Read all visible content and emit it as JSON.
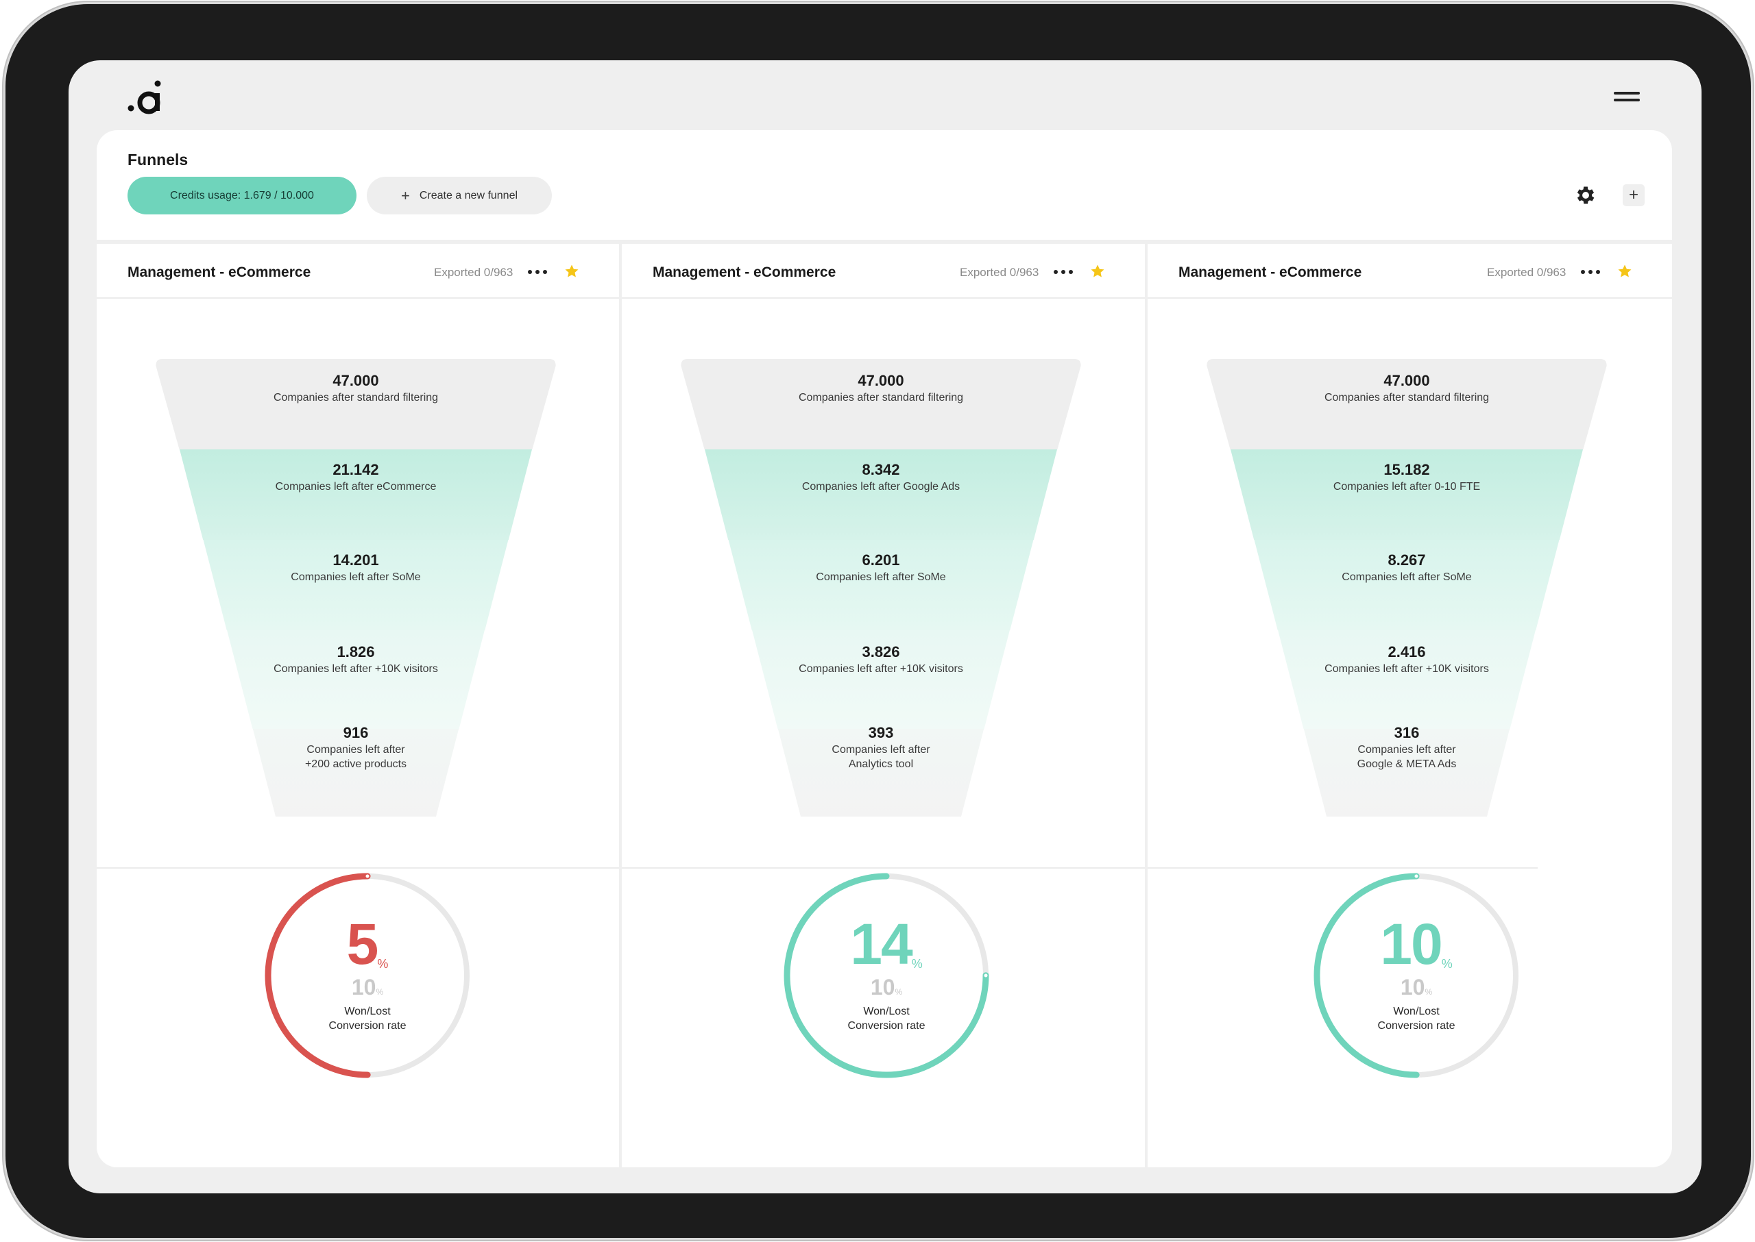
{
  "app": {
    "logo_text": ".ai",
    "page_title": "Funnels",
    "credits_label": "Credits usage: 1.679 / 10.000",
    "new_funnel_label": "Create a new funnel"
  },
  "colors": {
    "accent": "#6fd4bb",
    "danger": "#d9534f",
    "star": "#f5c518"
  },
  "panels": [
    {
      "title": "Management - eCommerce",
      "exported": "Exported 0/963",
      "stages": [
        {
          "value": "47.000",
          "label": "Companies after standard filtering"
        },
        {
          "value": "21.142",
          "label": "Companies left after eCommerce"
        },
        {
          "value": "14.201",
          "label": "Companies left after SoMe"
        },
        {
          "value": "1.826",
          "label": "Companies left after +10K visitors"
        },
        {
          "value": "916",
          "label": "Companies left after\n+200 active products"
        }
      ],
      "gauge": {
        "value": "5",
        "unit": "%",
        "target": "10",
        "target_unit": "%",
        "caption": "Won/Lost\nConversion rate",
        "fraction": 0.5,
        "status": "danger"
      }
    },
    {
      "title": "Management - eCommerce",
      "exported": "Exported 0/963",
      "stages": [
        {
          "value": "47.000",
          "label": "Companies after standard filtering"
        },
        {
          "value": "8.342",
          "label": "Companies left after Google Ads"
        },
        {
          "value": "6.201",
          "label": "Companies left after SoMe"
        },
        {
          "value": "3.826",
          "label": "Companies left after +10K visitors"
        },
        {
          "value": "393",
          "label": "Companies left after\nAnalytics tool"
        }
      ],
      "gauge": {
        "value": "14",
        "unit": "%",
        "target": "10",
        "target_unit": "%",
        "caption": "Won/Lost\nConversion rate",
        "fraction": 0.75,
        "status": "accent"
      }
    },
    {
      "title": "Management - eCommerce",
      "exported": "Exported 0/963",
      "stages": [
        {
          "value": "47.000",
          "label": "Companies after standard filtering"
        },
        {
          "value": "15.182",
          "label": "Companies left after 0-10 FTE"
        },
        {
          "value": "8.267",
          "label": "Companies left after SoMe"
        },
        {
          "value": "2.416",
          "label": "Companies left after +10K visitors"
        },
        {
          "value": "316",
          "label": "Companies left after\nGoogle & META Ads"
        }
      ],
      "gauge": {
        "value": "10",
        "unit": "%",
        "target": "10",
        "target_unit": "%",
        "caption": "Won/Lost\nConversion rate",
        "fraction": 0.5,
        "status": "accent"
      }
    }
  ]
}
